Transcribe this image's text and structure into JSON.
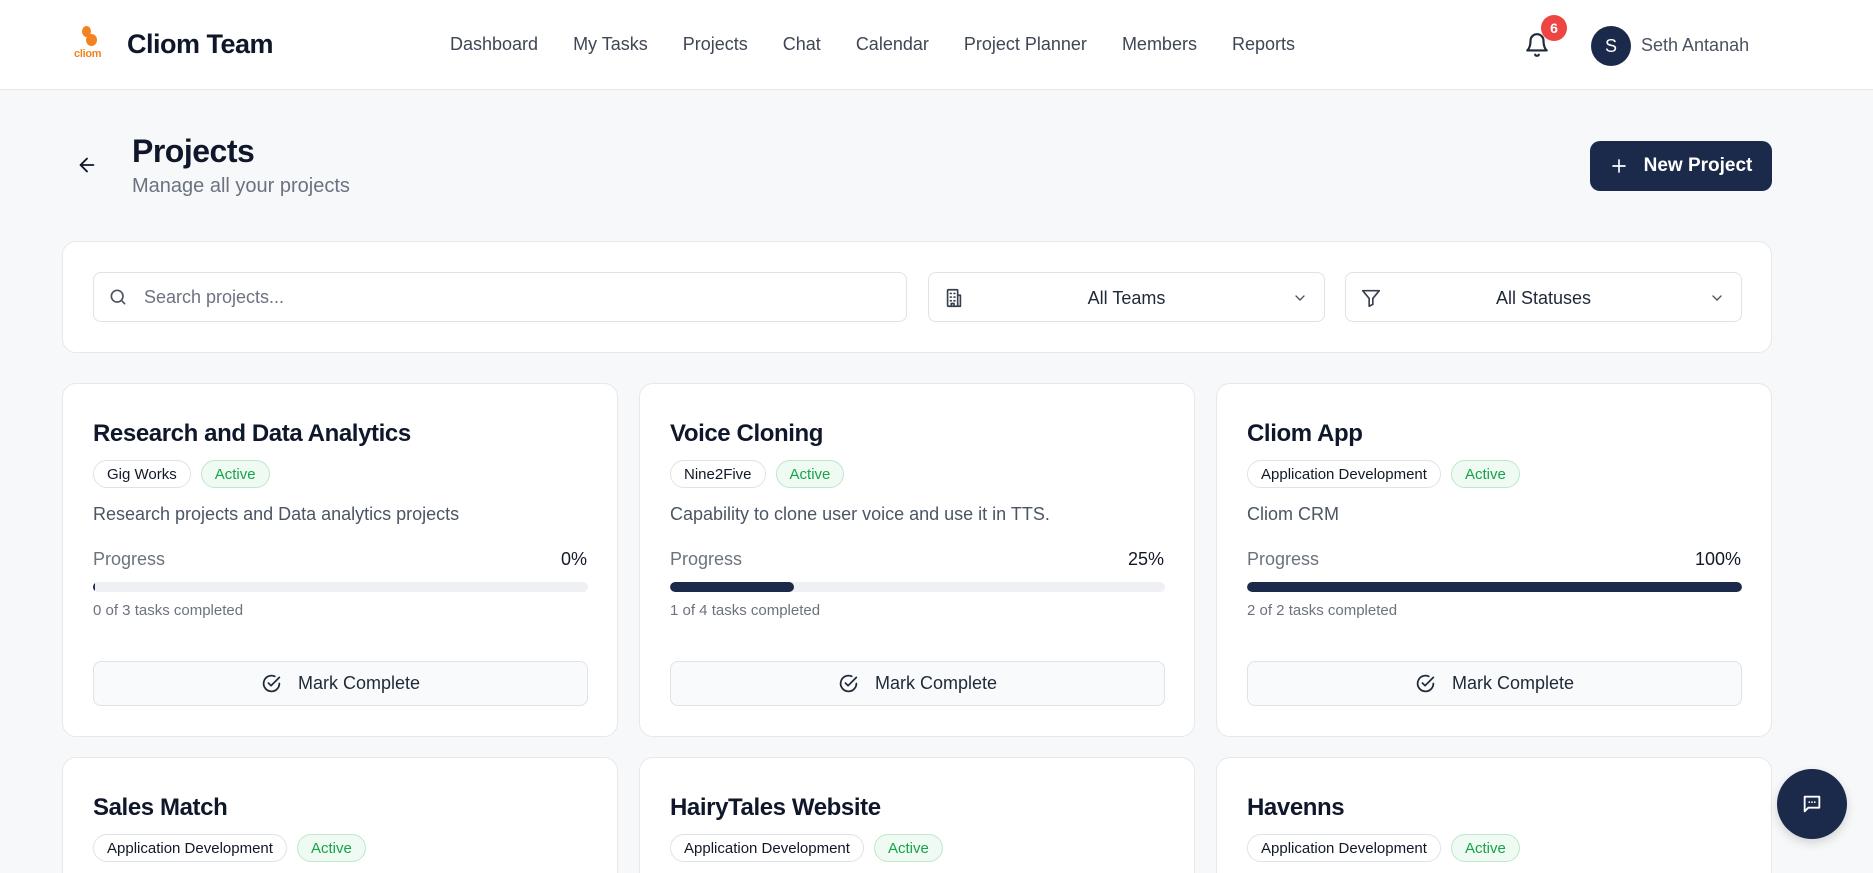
{
  "header": {
    "logo_text": "cliom",
    "brand": "Cliom Team",
    "nav": [
      "Dashboard",
      "My Tasks",
      "Projects",
      "Chat",
      "Calendar",
      "Project Planner",
      "Members",
      "Reports"
    ],
    "notification_count": "6",
    "avatar_initial": "S",
    "user_name": "Seth Antanah"
  },
  "page": {
    "title": "Projects",
    "subtitle": "Manage all your projects",
    "new_button": "New Project"
  },
  "filters": {
    "search_placeholder": "Search projects...",
    "team_select": "All Teams",
    "status_select": "All Statuses"
  },
  "projects": [
    {
      "name": "Research and Data Analytics",
      "team": "Gig Works",
      "status": "Active",
      "description": "Research projects and Data analytics projects",
      "progress_label": "Progress",
      "progress": 0,
      "progress_text": "0%",
      "tasks_text": "0 of 3 tasks completed",
      "action": "Mark Complete"
    },
    {
      "name": "Voice Cloning",
      "team": "Nine2Five",
      "status": "Active",
      "description": "Capability to clone user voice and use it in TTS.",
      "progress_label": "Progress",
      "progress": 25,
      "progress_text": "25%",
      "tasks_text": "1 of 4 tasks completed",
      "action": "Mark Complete"
    },
    {
      "name": "Cliom App",
      "team": "Application Development",
      "status": "Active",
      "description": "Cliom CRM",
      "progress_label": "Progress",
      "progress": 100,
      "progress_text": "100%",
      "tasks_text": "2 of 2 tasks completed",
      "action": "Mark Complete"
    },
    {
      "name": "Sales Match",
      "team": "Application Development",
      "status": "Active"
    },
    {
      "name": "HairyTales Website",
      "team": "Application Development",
      "status": "Active"
    },
    {
      "name": "Havenns",
      "team": "Application Development",
      "status": "Active"
    }
  ],
  "colors": {
    "primary": "#1b2a4a",
    "accent_orange": "#f58220",
    "status_green": "#16a34a",
    "badge_red": "#ef4444"
  }
}
